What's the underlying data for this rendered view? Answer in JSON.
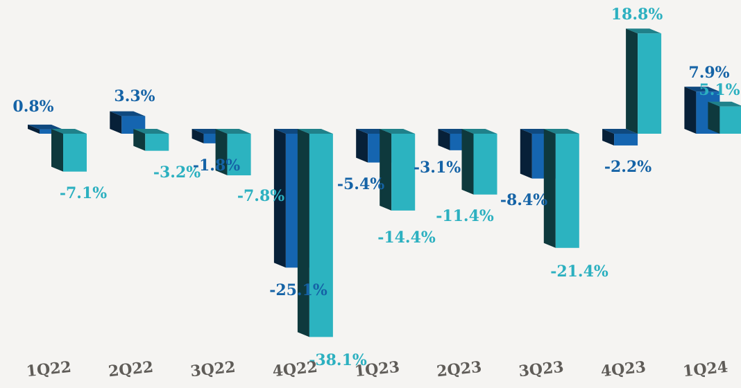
{
  "chart_data": {
    "type": "bar",
    "categories": [
      "1Q22",
      "2Q22",
      "3Q22",
      "4Q22",
      "1Q23",
      "2Q23",
      "3Q23",
      "4Q23",
      "1Q24"
    ],
    "series": [
      {
        "values": [
          0.8,
          3.3,
          -1.8,
          -25.1,
          -5.4,
          -3.1,
          -8.4,
          -2.2,
          7.9
        ],
        "labels": [
          "0.8%",
          "3.3%",
          "-1.8%",
          "-25.1%",
          "-5.4%",
          "-3.1%",
          "-8.4%",
          "-2.2%",
          "7.9%"
        ],
        "color": "#1565b0",
        "label_color": "#1563a6"
      },
      {
        "values": [
          -7.1,
          -3.2,
          -7.8,
          -38.1,
          -14.4,
          -11.4,
          -21.4,
          18.8,
          5.1
        ],
        "labels": [
          "-7.1%",
          "-3.2%",
          "-7.8%",
          "-38.1%",
          "-14.4%",
          "-11.4%",
          "-21.4%",
          "18.8%",
          "5.1%"
        ],
        "color": "#2cb3c0",
        "label_color": "#2cb0c0"
      }
    ],
    "ylim": [
      -40,
      20
    ],
    "grid": false,
    "legend": "none",
    "style": "3d-bars"
  }
}
